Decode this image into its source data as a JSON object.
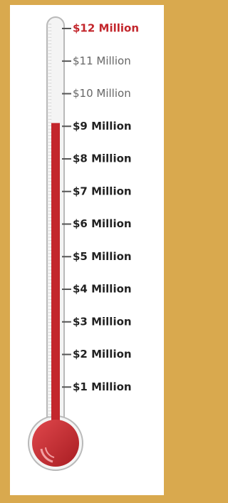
{
  "chart_data": {
    "type": "thermometer",
    "value": 9.1,
    "color": "#c3262c",
    "ylim": [
      0,
      12
    ],
    "yticks": [
      {
        "value": 1,
        "label": "$1 Million"
      },
      {
        "value": 2,
        "label": "$2 Million"
      },
      {
        "value": 3,
        "label": "$3 Million"
      },
      {
        "value": 4,
        "label": "$4 Million"
      },
      {
        "value": 5,
        "label": "$5 Million"
      },
      {
        "value": 6,
        "label": "$6 Million"
      },
      {
        "value": 7,
        "label": "$7 Million"
      },
      {
        "value": 8,
        "label": "$8 Million"
      },
      {
        "value": 9,
        "label": "$9 Million"
      },
      {
        "value": 10,
        "label": "$10 Million"
      },
      {
        "value": 11,
        "label": "$11 Million"
      },
      {
        "value": 12,
        "label": "$12 Million"
      }
    ]
  }
}
